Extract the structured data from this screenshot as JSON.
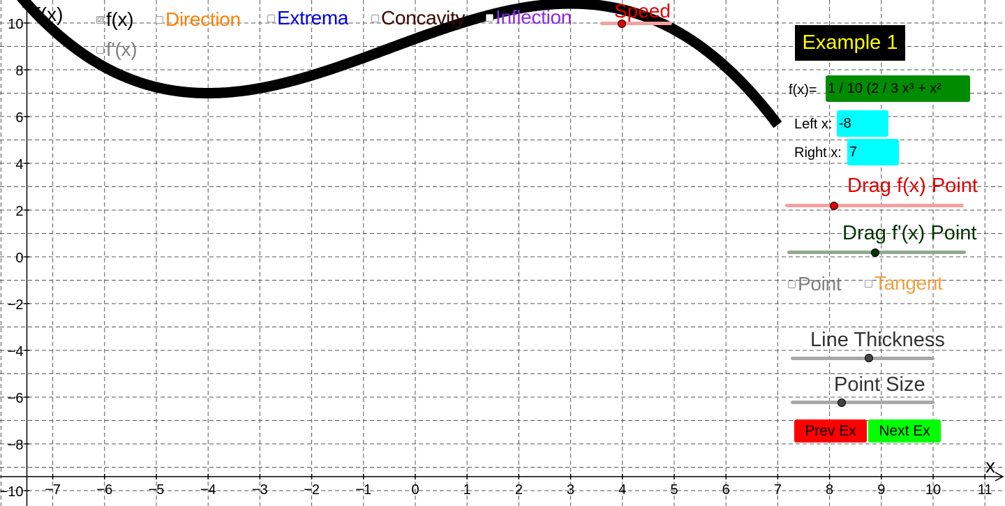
{
  "axes": {
    "x_label": "x",
    "y_label": "f(x)",
    "x_ticks": [
      "−7",
      "−6",
      "−5",
      "−4",
      "−3",
      "−2",
      "−1",
      "0",
      "1",
      "2",
      "3",
      "4",
      "5",
      "6",
      "7",
      "8",
      "9",
      "10",
      "11"
    ],
    "y_ticks": [
      "10",
      "8",
      "6",
      "4",
      "2",
      "0",
      "−2",
      "−4",
      "−6",
      "−8",
      "−10"
    ]
  },
  "checkboxes": [
    {
      "label": "f(x)",
      "checked": true,
      "color": "#000000"
    },
    {
      "label": "Direction",
      "checked": false,
      "color": "#ff7f00"
    },
    {
      "label": "Extrema",
      "checked": false,
      "color": "#0000e0"
    },
    {
      "label": "Concavity",
      "checked": false,
      "color": "#3b0a00"
    },
    {
      "label": "Inflection",
      "checked": false,
      "color": "#8a2be2"
    },
    {
      "label": "f'(x)",
      "checked": false,
      "color": "#808080"
    }
  ],
  "check_mark": "☑",
  "speed": {
    "label": "Speed",
    "color": "#e00000"
  },
  "example_title": "Example 1",
  "function_input": {
    "label": "f(x)=",
    "value": "1 / 10 (2 / 3 x³ + x²"
  },
  "left_x": {
    "label": "Left x:",
    "value": "-8"
  },
  "right_x": {
    "label": "Right x:",
    "value": "7"
  },
  "drag_fx": {
    "label": "Drag f(x) Point",
    "color": "#e00000"
  },
  "drag_fpx": {
    "label": "Drag f'(x) Point",
    "color": "#003300"
  },
  "point_toggle": {
    "label": "Point",
    "checked": false,
    "color": "#808080"
  },
  "tangent_toggle": {
    "label": "Tangent",
    "checked": false,
    "color": "#f4a040"
  },
  "line_thickness": {
    "label": "Line Thickness"
  },
  "point_size": {
    "label": "Point Size"
  },
  "prev_button": "Prev Ex",
  "next_button": "Next Ex",
  "graph": {
    "curve_color": "#000000",
    "domain": [
      -8,
      7
    ]
  }
}
